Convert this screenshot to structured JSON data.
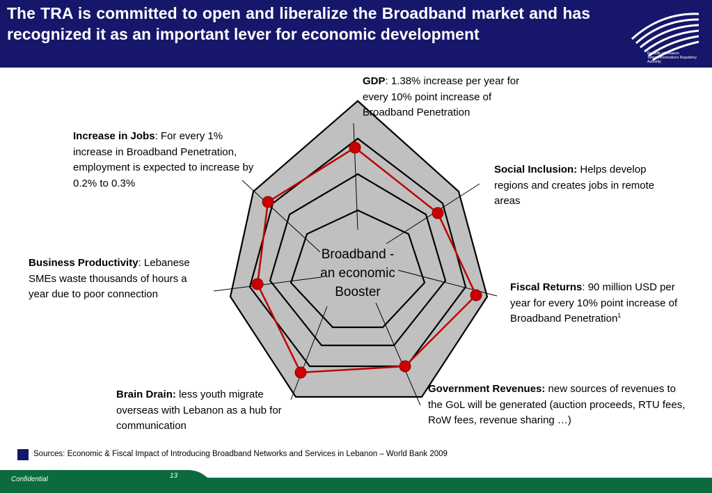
{
  "slide": {
    "title": "The TRA is committed to open and liberalize the Broadband market and has recognized it as an important lever for  economic development",
    "logo_text": "Republic of Lebanon Telecommunications Regulatory Authority",
    "center_label_lines": [
      "Broadband -",
      "an economic",
      "Booster"
    ],
    "labels": {
      "gdp": {
        "head": "GDP",
        "body": ":  1.38% increase per year for every 10%  point increase of Broadband Penetration"
      },
      "social": {
        "head": "Social Inclusion:",
        "body": " Helps develop regions and creates jobs in remote areas"
      },
      "fiscal": {
        "head": "Fiscal Returns",
        "body": ":  90 million USD per year for every 10%  point increase of Broadband Penetration",
        "sup": "1"
      },
      "gov": {
        "head": "Government Revenues:",
        "body": " new sources of revenues to the GoL will be generated (auction proceeds, RTU fees, RoW fees, revenue sharing …)"
      },
      "brain": {
        "head": "Brain Drain:",
        "body": " less youth migrate overseas with Lebanon as a hub for communication"
      },
      "business": {
        "head": "Business Productivity",
        "body": ": Lebanese SMEs waste thousands of hours a year due to poor connection"
      },
      "jobs": {
        "head": "Increase in Jobs",
        "body": ": For every 1% increase in Broadband Penetration, employment is expected to increase by 0.2% to 0.3%"
      }
    },
    "sources": "Sources: Economic & Fiscal Impact of Introducing Broadband Networks and Services in Lebanon – World Bank 2009",
    "footer": {
      "confidential": "Confidential",
      "page_number": "13"
    },
    "colors": {
      "header": "#16166b",
      "polygon_fill": "#c0c0c0",
      "data_line": "#c00000",
      "marker": "#cc0000",
      "footer": "#0b6b3f"
    }
  }
}
